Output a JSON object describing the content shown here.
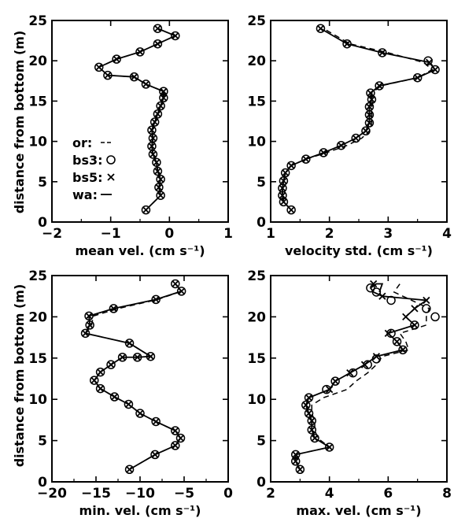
{
  "figure": {
    "ylabel": "distance from bottom (m)",
    "legend": [
      {
        "label": "or:",
        "symbol": "--",
        "style": "dashed"
      },
      {
        "label": "bs3:",
        "symbol": "o",
        "style": "circle"
      },
      {
        "label": "bs5:",
        "symbol": "x",
        "style": "cross"
      },
      {
        "label": "wa:",
        "symbol": "—",
        "style": "solid"
      }
    ]
  },
  "chart_data": [
    {
      "type": "line",
      "xlabel": "mean vel. (cm s⁻¹)",
      "ylabel": "distance from bottom (m)",
      "xlim": [
        -2,
        1
      ],
      "ylim": [
        0,
        25
      ],
      "xticks": [
        "−2",
        "−1",
        "0",
        "1"
      ],
      "yticks": [
        "0",
        "5",
        "10",
        "15",
        "20",
        "25"
      ],
      "legend_position": "bottom-left",
      "series": [
        {
          "style": "solid",
          "x": [
            -0.4,
            -0.15,
            -0.18,
            -0.15,
            -0.2,
            -0.22,
            -0.28,
            -0.3,
            -0.28,
            -0.3,
            -0.25,
            -0.2,
            -0.15,
            -0.1,
            -0.1,
            -0.4,
            -0.6,
            -1.05,
            -1.2,
            -0.9,
            -0.5,
            -0.2,
            0.1,
            -0.2
          ],
          "y": [
            1.5,
            3.3,
            4.3,
            5.3,
            6.3,
            7.4,
            8.4,
            9.4,
            10.4,
            11.4,
            12.4,
            13.4,
            14.4,
            15.4,
            16.2,
            17.1,
            18.0,
            18.2,
            19.2,
            20.2,
            21.1,
            22.1,
            23.1,
            24.0
          ]
        },
        {
          "style": "dashed",
          "x": [
            -0.4,
            -0.15,
            -0.18,
            -0.15,
            -0.2,
            -0.22,
            -0.28,
            -0.3,
            -0.28,
            -0.3,
            -0.25,
            -0.2,
            -0.15,
            -0.1,
            -0.1,
            -0.4,
            -0.6,
            -1.05,
            -1.2,
            -0.9,
            -0.5,
            -0.2,
            0.1,
            -0.2
          ],
          "y": [
            1.5,
            3.3,
            4.3,
            5.3,
            6.3,
            7.4,
            8.4,
            9.4,
            10.4,
            11.4,
            12.4,
            13.4,
            14.4,
            15.4,
            16.2,
            17.1,
            18.0,
            18.2,
            19.2,
            20.2,
            21.1,
            22.1,
            23.1,
            24.0
          ]
        },
        {
          "style": "circle",
          "x": [
            -0.4,
            -0.15,
            -0.18,
            -0.15,
            -0.2,
            -0.22,
            -0.28,
            -0.3,
            -0.28,
            -0.3,
            -0.25,
            -0.2,
            -0.15,
            -0.1,
            -0.1,
            -0.4,
            -0.6,
            -1.05,
            -1.2,
            -0.9,
            -0.5,
            -0.2,
            0.1,
            -0.2
          ],
          "y": [
            1.5,
            3.3,
            4.3,
            5.3,
            6.3,
            7.4,
            8.4,
            9.4,
            10.4,
            11.4,
            12.4,
            13.4,
            14.4,
            15.4,
            16.2,
            17.1,
            18.0,
            18.2,
            19.2,
            20.2,
            21.1,
            22.1,
            23.1,
            24.0
          ]
        },
        {
          "style": "cross",
          "x": [
            -0.4,
            -0.15,
            -0.18,
            -0.15,
            -0.2,
            -0.22,
            -0.28,
            -0.3,
            -0.28,
            -0.3,
            -0.25,
            -0.2,
            -0.15,
            -0.1,
            -0.1,
            -0.4,
            -0.6,
            -1.05,
            -1.2,
            -0.9,
            -0.5,
            -0.2,
            0.1,
            -0.2
          ],
          "y": [
            1.5,
            3.3,
            4.3,
            5.3,
            6.3,
            7.4,
            8.4,
            9.4,
            10.4,
            11.4,
            12.4,
            13.4,
            14.4,
            15.4,
            16.2,
            17.1,
            18.0,
            18.2,
            19.2,
            20.2,
            21.1,
            22.1,
            23.1,
            24.0
          ]
        }
      ]
    },
    {
      "type": "line",
      "xlabel": "velocity std. (cm s⁻¹)",
      "xlim": [
        1,
        4
      ],
      "ylim": [
        0,
        25
      ],
      "xticks": [
        "1",
        "2",
        "3",
        "4"
      ],
      "yticks": [
        "0",
        "5",
        "10",
        "15",
        "20",
        "25"
      ],
      "series": [
        {
          "style": "solid",
          "x": [
            1.35,
            1.22,
            1.2,
            1.2,
            1.22,
            1.25,
            1.35,
            1.6,
            1.9,
            2.2,
            2.45,
            2.62,
            2.68,
            2.68,
            2.68,
            2.72,
            2.7,
            2.85,
            3.5,
            3.8,
            3.7,
            2.9,
            2.3,
            1.85
          ],
          "y": [
            1.5,
            2.5,
            3.3,
            4.2,
            5.1,
            6.1,
            7.0,
            7.8,
            8.6,
            9.5,
            10.4,
            11.3,
            12.3,
            13.3,
            14.3,
            15.2,
            16.0,
            16.9,
            17.9,
            18.9,
            19.8,
            21.0,
            22.1,
            24.0
          ]
        },
        {
          "style": "dashed",
          "x": [
            1.35,
            1.22,
            1.2,
            1.2,
            1.22,
            1.25,
            1.35,
            1.6,
            1.95,
            2.3,
            2.55,
            2.68,
            2.72,
            2.72,
            2.72,
            2.74,
            2.72,
            2.88,
            3.5,
            3.75,
            3.6,
            3.0,
            2.35,
            1.9
          ],
          "y": [
            1.5,
            2.5,
            3.3,
            4.2,
            5.1,
            6.1,
            7.0,
            7.8,
            8.6,
            9.5,
            10.4,
            11.3,
            12.3,
            13.3,
            14.3,
            15.2,
            16.0,
            16.9,
            17.9,
            18.9,
            19.8,
            21.0,
            22.1,
            24.0
          ]
        },
        {
          "style": "circle",
          "x": [
            1.35,
            1.22,
            1.2,
            1.2,
            1.22,
            1.25,
            1.35,
            1.6,
            1.9,
            2.2,
            2.45,
            2.62,
            2.68,
            2.68,
            2.68,
            2.72,
            2.7,
            2.85,
            3.5,
            3.8,
            3.68,
            2.9,
            2.3,
            1.85
          ],
          "y": [
            1.5,
            2.5,
            3.3,
            4.2,
            5.1,
            6.1,
            7.0,
            7.8,
            8.6,
            9.5,
            10.4,
            11.3,
            12.3,
            13.3,
            14.3,
            15.2,
            16.0,
            16.9,
            17.9,
            18.9,
            20.0,
            21.0,
            22.1,
            24.0
          ]
        },
        {
          "style": "cross",
          "x": [
            1.35,
            1.22,
            1.2,
            1.2,
            1.22,
            1.25,
            1.35,
            1.6,
            1.9,
            2.2,
            2.45,
            2.62,
            2.68,
            2.68,
            2.68,
            2.72,
            2.7,
            2.85,
            3.5,
            3.8,
            3.7,
            2.9,
            2.3,
            1.85
          ],
          "y": [
            1.5,
            2.5,
            3.3,
            4.2,
            5.1,
            6.1,
            7.0,
            7.8,
            8.6,
            9.5,
            10.4,
            11.3,
            12.3,
            13.3,
            14.3,
            15.2,
            16.0,
            16.9,
            17.9,
            18.9,
            19.8,
            21.0,
            22.1,
            24.0
          ]
        }
      ]
    },
    {
      "type": "line",
      "xlabel": "min. vel. (cm s⁻¹)",
      "ylabel": "distance from bottom (m)",
      "xlim": [
        -20,
        0
      ],
      "ylim": [
        0,
        25
      ],
      "xticks": [
        "−20",
        "−15",
        "−10",
        "−5",
        "0"
      ],
      "yticks": [
        "0",
        "5",
        "10",
        "15",
        "20",
        "25"
      ],
      "series": [
        {
          "style": "solid",
          "x": [
            -11.2,
            -8.3,
            -6.0,
            -5.4,
            -6.0,
            -8.2,
            -10.0,
            -11.3,
            -12.9,
            -14.5,
            -15.2,
            -14.5,
            -13.3,
            -12.0,
            -10.3,
            -8.8,
            -11.2,
            -16.2,
            -15.7,
            -15.8,
            -13.0,
            -8.2,
            -5.3,
            -6.0
          ],
          "y": [
            1.5,
            3.3,
            4.4,
            5.3,
            6.2,
            7.3,
            8.3,
            9.4,
            10.3,
            11.3,
            12.3,
            13.3,
            14.2,
            15.1,
            15.1,
            15.2,
            16.8,
            18.0,
            19.0,
            20.1,
            21.0,
            22.1,
            23.1,
            24.0
          ]
        },
        {
          "style": "dashed",
          "x": [
            -11.2,
            -8.3,
            -6.0,
            -5.4,
            -6.0,
            -8.2,
            -10.0,
            -11.3,
            -12.9,
            -14.5,
            -15.2,
            -14.5,
            -13.3,
            -12.0,
            -10.3,
            -8.8,
            -11.2,
            -16.2,
            -15.5,
            -15.3,
            -12.5,
            -8.0,
            -5.3,
            -6.0
          ],
          "y": [
            1.5,
            3.3,
            4.4,
            5.3,
            6.2,
            7.3,
            8.3,
            9.4,
            10.3,
            11.3,
            12.3,
            13.3,
            14.2,
            15.1,
            15.1,
            15.2,
            16.8,
            18.0,
            19.0,
            20.1,
            21.0,
            22.1,
            23.1,
            24.0
          ]
        },
        {
          "style": "circle",
          "x": [
            -11.2,
            -8.3,
            -6.0,
            -5.4,
            -6.0,
            -8.2,
            -10.0,
            -11.3,
            -12.9,
            -14.5,
            -15.2,
            -14.5,
            -13.3,
            -12.0,
            -10.3,
            -8.8,
            -11.2,
            -16.2,
            -15.7,
            -15.8,
            -13.0,
            -8.2,
            -5.3,
            -6.0
          ],
          "y": [
            1.5,
            3.3,
            4.4,
            5.3,
            6.2,
            7.3,
            8.3,
            9.4,
            10.3,
            11.3,
            12.3,
            13.3,
            14.2,
            15.1,
            15.1,
            15.2,
            16.8,
            18.0,
            19.0,
            20.1,
            21.0,
            22.1,
            23.1,
            24.0
          ]
        },
        {
          "style": "cross",
          "x": [
            -11.2,
            -8.3,
            -6.0,
            -5.4,
            -6.0,
            -8.2,
            -10.0,
            -11.3,
            -12.9,
            -14.5,
            -15.2,
            -14.5,
            -13.3,
            -12.0,
            -10.3,
            -8.8,
            -11.2,
            -16.2,
            -15.7,
            -15.8,
            -13.0,
            -8.2,
            -5.3,
            -6.0
          ],
          "y": [
            1.5,
            3.3,
            4.4,
            5.3,
            6.2,
            7.3,
            8.3,
            9.4,
            10.3,
            11.3,
            12.3,
            13.3,
            14.2,
            15.1,
            15.1,
            15.2,
            16.8,
            18.0,
            19.0,
            20.1,
            21.0,
            22.1,
            23.1,
            24.0
          ]
        }
      ]
    },
    {
      "type": "line",
      "xlabel": "max. vel. (cm s⁻¹)",
      "xlim": [
        2,
        8
      ],
      "ylim": [
        0,
        25
      ],
      "xticks": [
        "2",
        "4",
        "6",
        "8"
      ],
      "yticks": [
        "0",
        "5",
        "10",
        "15",
        "20",
        "25"
      ],
      "series": [
        {
          "style": "solid",
          "x": [
            3.0,
            2.85,
            2.85,
            4.0,
            3.5,
            3.4,
            3.4,
            3.3,
            3.2,
            3.3,
            4.0,
            4.2,
            4.7,
            5.2,
            5.6,
            6.5,
            6.3,
            6.0,
            6.9,
            6.6,
            6.9,
            7.3,
            5.8,
            5.5,
            5.4,
            5.6,
            5.8,
            5.7
          ],
          "y": [
            1.5,
            2.5,
            3.3,
            4.2,
            5.3,
            6.3,
            7.4,
            8.3,
            9.3,
            10.2,
            11.2,
            12.2,
            13.2,
            14.2,
            15.2,
            16.0,
            17.0,
            18.0,
            19.0,
            20.0,
            21.0,
            22.0,
            22.5,
            23.0,
            23.5,
            24.0,
            24.0,
            23.0
          ]
        },
        {
          "style": "dashed",
          "x": [
            3.0,
            2.85,
            2.85,
            4.0,
            3.6,
            3.5,
            3.5,
            3.4,
            3.4,
            3.8,
            4.6,
            4.9,
            5.3,
            5.6,
            5.8,
            6.7,
            6.6,
            6.4,
            7.3,
            7.3,
            7.4,
            6.8,
            6.2,
            6.4,
            6.3
          ],
          "y": [
            1.5,
            2.5,
            3.3,
            4.2,
            5.3,
            6.3,
            7.4,
            8.3,
            9.3,
            10.2,
            11.2,
            12.2,
            13.2,
            14.2,
            15.2,
            16.0,
            17.0,
            18.0,
            19.0,
            20.0,
            21.0,
            22.0,
            23.0,
            24.0,
            24.0
          ]
        },
        {
          "style": "circle",
          "x": [
            3.0,
            2.85,
            2.85,
            4.0,
            3.5,
            3.4,
            3.4,
            3.3,
            3.2,
            3.3,
            3.9,
            4.2,
            4.8,
            5.3,
            5.6,
            6.5,
            6.3,
            6.1,
            6.9,
            7.6,
            7.3,
            6.1,
            5.6,
            5.4
          ],
          "y": [
            1.5,
            2.5,
            3.3,
            4.2,
            5.3,
            6.3,
            7.4,
            8.3,
            9.3,
            10.2,
            11.2,
            12.2,
            13.2,
            14.2,
            14.9,
            16.0,
            17.0,
            18.0,
            19.0,
            20.0,
            21.0,
            22.0,
            23.0,
            23.5
          ]
        },
        {
          "style": "cross",
          "x": [
            3.0,
            2.85,
            2.85,
            4.0,
            3.5,
            3.4,
            3.4,
            3.3,
            3.2,
            3.3,
            4.0,
            4.2,
            4.7,
            5.2,
            5.6,
            6.5,
            6.3,
            6.0,
            6.9,
            6.6,
            6.9,
            7.3,
            5.8,
            5.5
          ],
          "y": [
            1.5,
            2.5,
            3.3,
            4.2,
            5.3,
            6.3,
            7.4,
            8.3,
            9.3,
            10.2,
            11.2,
            12.2,
            13.2,
            14.2,
            15.2,
            16.0,
            17.0,
            18.0,
            19.0,
            20.0,
            21.0,
            22.0,
            22.5,
            24.0
          ]
        }
      ]
    }
  ]
}
